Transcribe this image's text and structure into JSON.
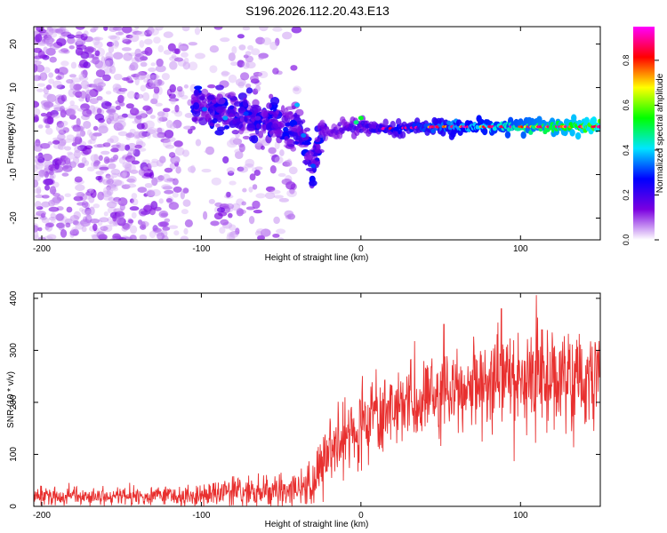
{
  "title": "S196.2026.112.20.43.E13",
  "chart_data": [
    {
      "type": "heatmap",
      "title": "S196.2026.112.20.43.E13",
      "xlabel": "Height of straight line (km)",
      "ylabel": "Frequency (Hz)",
      "xlim": [
        -205,
        150
      ],
      "ylim": [
        -25,
        24
      ],
      "xticks": [
        -200,
        -100,
        0,
        100
      ],
      "yticks": [
        -20,
        -10,
        0,
        10,
        20
      ],
      "grid": false,
      "description_trace": {
        "x": [
          -100,
          -90,
          -80,
          -70,
          -60,
          -50,
          -40,
          -35,
          -30,
          -25,
          -20,
          -10,
          0,
          10,
          50,
          100,
          150
        ],
        "freq_hz": [
          6,
          5,
          4,
          3,
          3,
          2,
          1,
          -3,
          -8,
          0,
          0,
          0.5,
          1,
          0.5,
          1,
          1,
          1
        ]
      },
      "colorbar": {
        "label": "Normalized spectral amplitude",
        "range": [
          0.0,
          0.95
        ],
        "ticks": [
          0.0,
          0.2,
          0.4,
          0.6,
          0.8
        ],
        "tick_labels": [
          "0.0",
          "0.2",
          "0.4",
          "0.6",
          "0.8"
        ],
        "colormap": [
          "#ffffff",
          "#7b00e0",
          "#0000ff",
          "#00e5ff",
          "#00ff00",
          "#ffff00",
          "#ff0000",
          "#ff00ff"
        ]
      }
    },
    {
      "type": "line",
      "xlabel": "Height of straight line (km)",
      "ylabel": "SNR (10 * v/v)",
      "xlim": [
        -205,
        150
      ],
      "ylim": [
        0,
        410
      ],
      "xticks": [
        -200,
        -100,
        0,
        100
      ],
      "yticks": [
        0,
        100,
        200,
        300,
        400
      ],
      "grid": false,
      "series": [
        {
          "name": "SNR",
          "color": "#e8302f",
          "x": [
            -205,
            -190,
            -175,
            -160,
            -145,
            -130,
            -115,
            -100,
            -90,
            -80,
            -70,
            -60,
            -50,
            -40,
            -30,
            -25,
            -20,
            -15,
            -10,
            -5,
            0,
            10,
            20,
            30,
            40,
            50,
            60,
            70,
            80,
            90,
            100,
            105,
            110,
            115,
            120,
            130,
            140,
            150
          ],
          "values": [
            18,
            18,
            19,
            19,
            20,
            20,
            21,
            22,
            25,
            28,
            30,
            30,
            30,
            35,
            45,
            70,
            100,
            125,
            140,
            150,
            155,
            170,
            185,
            195,
            205,
            210,
            220,
            225,
            235,
            245,
            240,
            230,
            265,
            255,
            245,
            250,
            240,
            250
          ],
          "spread": [
            16,
            16,
            16,
            16,
            16,
            17,
            18,
            20,
            22,
            24,
            25,
            26,
            28,
            30,
            40,
            55,
            70,
            75,
            75,
            75,
            75,
            75,
            75,
            75,
            75,
            75,
            78,
            80,
            80,
            80,
            85,
            85,
            85,
            85,
            80,
            80,
            80,
            80
          ],
          "peaks": [
            {
              "x": 110,
              "value": 406
            },
            {
              "x": 88,
              "value": 380
            },
            {
              "x": 52,
              "value": 350
            },
            {
              "x": 96,
              "value": 87
            },
            {
              "x": 146,
              "value": 145
            }
          ]
        }
      ]
    }
  ]
}
